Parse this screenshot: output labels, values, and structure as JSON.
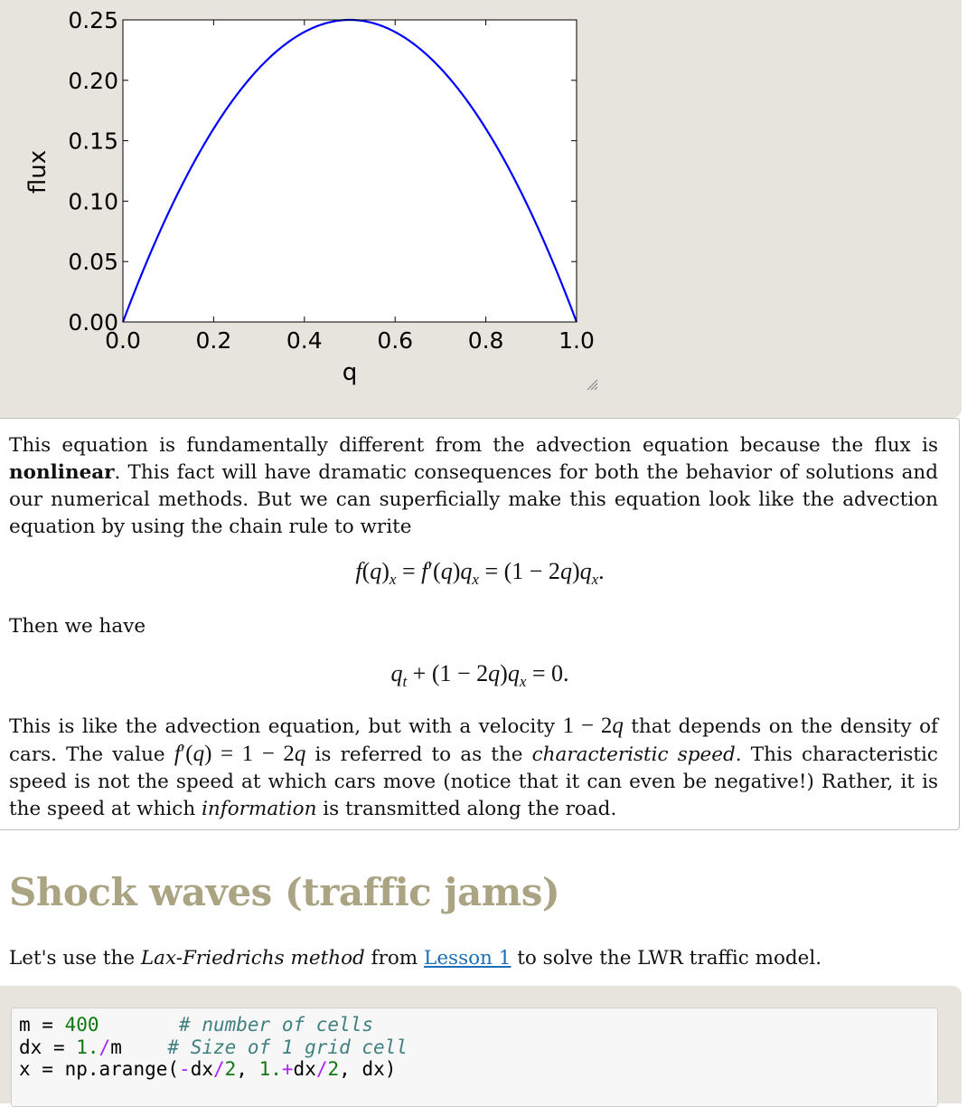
{
  "chart_data": {
    "type": "line",
    "xlabel": "q",
    "ylabel": "flux",
    "xlim": [
      0.0,
      1.0
    ],
    "ylim": [
      0.0,
      0.25
    ],
    "xticks": [
      "0.0",
      "0.2",
      "0.4",
      "0.6",
      "0.8",
      "1.0"
    ],
    "yticks": [
      "0.00",
      "0.05",
      "0.10",
      "0.15",
      "0.20",
      "0.25"
    ],
    "series": [
      {
        "color": "#0000ff",
        "x": [
          0.0,
          0.05,
          0.1,
          0.15,
          0.2,
          0.25,
          0.3,
          0.35,
          0.4,
          0.45,
          0.5,
          0.55,
          0.6,
          0.65,
          0.7,
          0.75,
          0.8,
          0.85,
          0.9,
          0.95,
          1.0
        ],
        "y": [
          0.0,
          0.0475,
          0.09,
          0.1275,
          0.16,
          0.1875,
          0.21,
          0.2275,
          0.24,
          0.2475,
          0.25,
          0.2475,
          0.24,
          0.2275,
          0.21,
          0.1875,
          0.16,
          0.1275,
          0.09,
          0.0475,
          0.0
        ]
      }
    ]
  },
  "markdown": {
    "para1": {
      "a": "This equation is fundamentally different from the advection equation because the flux is ",
      "bold": "nonlinear",
      "b": ". This fact will have dramatic consequences for both the behavior of solutions and our numerical methods. But we can superficially make this equation look like the advection equation by using the chain rule to write"
    },
    "eq1": {
      "f": "f",
      "q": "q",
      "x": "x",
      "eq": "=",
      "fp": "f",
      "prime": "′",
      "rhs_num": "(1 − 2",
      "rhs_close": ")",
      "dot": "."
    },
    "then": "Then we have",
    "eq2": {
      "q": "q",
      "t": "t",
      "plus": " + (1 − 2",
      "close": ")",
      "x": "x",
      "eq": " = 0."
    },
    "para2": {
      "a": "This is like the advection equation, but with a velocity ",
      "m1": "1 − 2",
      "b": " that depends on the density of cars. The value ",
      "m2a": "f",
      "m2b": "′(",
      "m2c": ") = 1 − 2",
      "c": " is referred to as the ",
      "em1": "characteristic speed",
      "d": ". This characteristic speed is not the speed at which cars move (notice that it can even be negative!) Rather, it is the speed at which ",
      "em2": "information",
      "e": " is transmitted along the road."
    }
  },
  "heading": "Shock waves (traffic jams)",
  "intro": {
    "a": "Let's use the ",
    "em": "Lax-Friedrichs method",
    "b": " from ",
    "link": "Lesson 1",
    "c": " to solve the LWR traffic model."
  },
  "code": {
    "l1_var": "m",
    "l1_eq": " = ",
    "l1_num": "400",
    "l1_pad": "       ",
    "l1_comment": "# number of cells",
    "l2_var": "dx",
    "l2_eq": " = ",
    "l2_num": "1.",
    "l2_op": "/",
    "l2_var2": "m",
    "l2_pad": "    ",
    "l2_comment": "# Size of 1 grid cell",
    "l3_var": "x",
    "l3_eq": " = ",
    "l3_call": "np.arange(",
    "l3_minus": "-",
    "l3_dx1": "dx",
    "l3_div1": "/",
    "l3_two1": "2",
    "l3_comma": ", ",
    "l3_one": "1.",
    "l3_plus": "+",
    "l3_dx2": "dx",
    "l3_div2": "/",
    "l3_two2": "2",
    "l3_tail": ", dx)"
  }
}
